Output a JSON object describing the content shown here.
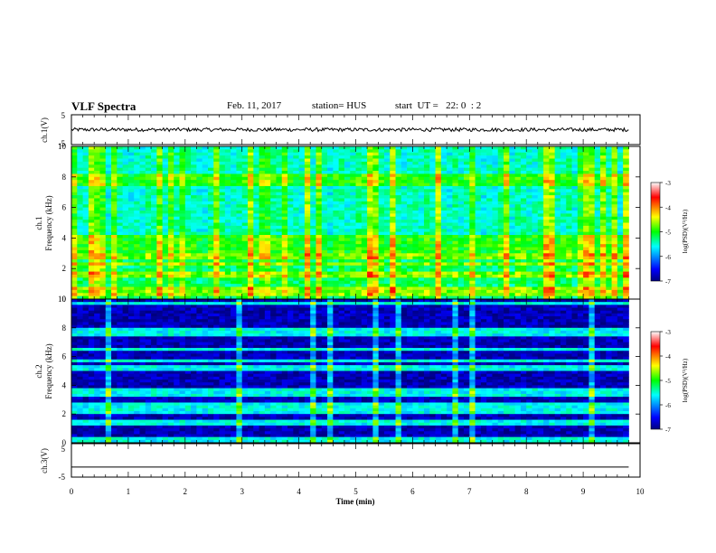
{
  "header": {
    "title": "VLF Spectra",
    "date": "Feb. 11, 2017",
    "station": "station= HUS",
    "start": "start  UT =   22: 0  : 2"
  },
  "chart_data": [
    {
      "type": "line",
      "panel": "ch1-waveform",
      "ylabel": "ch.1(V)",
      "ylim": [
        -5,
        5
      ],
      "yticks": [
        "5",
        "-5"
      ],
      "xlim": [
        0,
        10
      ],
      "data_extent_min": [
        0,
        9.8
      ],
      "description_values": {
        "mean_V": 0.0,
        "noise_amplitude_V": 0.6
      }
    },
    {
      "type": "heatmap",
      "panel": "ch1-spectrogram",
      "ylabel": "Frequency (kHz)",
      "channel_label": "ch.1",
      "ylim": [
        0,
        10
      ],
      "yticks": [
        "0",
        "2",
        "4",
        "6",
        "8",
        "10"
      ],
      "xlim": [
        0,
        10
      ],
      "data_extent_min": [
        0,
        9.8
      ],
      "colorbar": {
        "label": "log(PSD)(V²/Hz)",
        "range": [
          -7,
          -3
        ],
        "ticks": [
          "-3",
          "-4",
          "-5",
          "-6",
          "-7"
        ]
      },
      "background_level": -5.6,
      "bands_kHz": [
        0.3,
        0.6,
        1.6,
        2.3,
        2.7,
        3.0,
        3.4,
        3.8,
        4.0,
        7.6,
        8.0
      ]
    },
    {
      "type": "heatmap",
      "panel": "ch2-spectrogram",
      "ylabel": "Frequency (kHz)",
      "channel_label": "ch.2",
      "ylim": [
        0,
        10
      ],
      "yticks": [
        "0",
        "2",
        "4",
        "6",
        "8",
        "10"
      ],
      "xlim": [
        0,
        10
      ],
      "data_extent_min": [
        0,
        9.8
      ],
      "colorbar": {
        "label": "log(PSD)(V²/Hz)",
        "range": [
          -7,
          -3
        ],
        "ticks": [
          "-3",
          "-4",
          "-5",
          "-6",
          "-7"
        ]
      },
      "background_level": -6.8,
      "bands_kHz": [
        0.2,
        1.4,
        2.2,
        2.6,
        3.4,
        3.6,
        5.2,
        5.7,
        6.5,
        7.6,
        7.9,
        9.7
      ],
      "impulses_min": [
        0.65,
        2.9,
        4.3,
        4.55,
        5.4,
        5.75,
        6.8,
        7.1,
        9.15
      ]
    },
    {
      "type": "line",
      "panel": "ch3-waveform",
      "ylabel": "ch.3(V)",
      "ylim": [
        -5,
        5
      ],
      "yticks": [
        "5",
        "-5"
      ],
      "xlim": [
        0,
        10
      ],
      "data_extent_min": [
        0,
        9.8
      ],
      "description_values": {
        "mean_V": -2.0,
        "noise_amplitude_V": 0.0
      }
    }
  ],
  "xaxis": {
    "label": "Time (min)",
    "ticks": [
      "0",
      "1",
      "2",
      "3",
      "4",
      "5",
      "6",
      "7",
      "8",
      "9",
      "10"
    ]
  }
}
